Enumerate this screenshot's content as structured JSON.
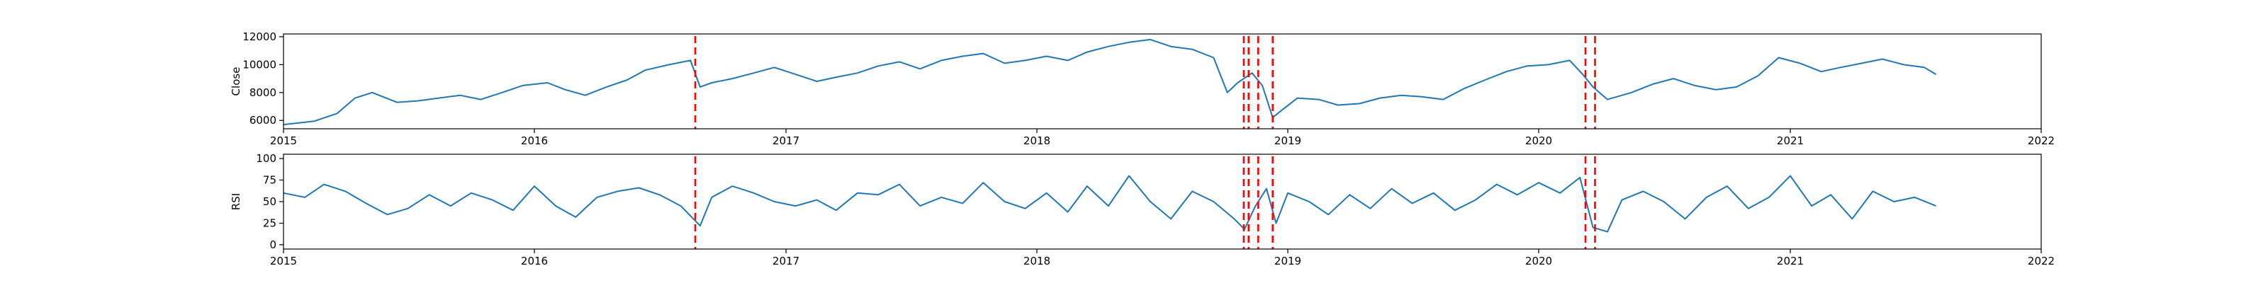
{
  "chart_data": [
    {
      "type": "line",
      "title": "",
      "xlabel": "",
      "ylabel": "Close",
      "xlim": [
        "2015-01-01",
        "2022-01-01"
      ],
      "ylim": [
        5400,
        12200
      ],
      "x_ticks": [
        "2015",
        "2016",
        "2017",
        "2018",
        "2019",
        "2020",
        "2021",
        "2022"
      ],
      "y_ticks": [
        "6000",
        "8000",
        "10000",
        "12000"
      ],
      "y_tick_values": [
        6000,
        8000,
        10000,
        12000
      ],
      "grid": false,
      "series": [
        {
          "color": "#1f77b4",
          "x": [
            "2015-01-01",
            "2015-02-15",
            "2015-03-20",
            "2015-04-15",
            "2015-05-10",
            "2015-06-15",
            "2015-07-15",
            "2015-08-15",
            "2015-09-15",
            "2015-10-15",
            "2015-11-15",
            "2015-12-15",
            "2016-01-20",
            "2016-02-15",
            "2016-03-15",
            "2016-04-15",
            "2016-05-15",
            "2016-06-10",
            "2016-07-15",
            "2016-08-15",
            "2016-08-29",
            "2016-09-15",
            "2016-10-15",
            "2016-11-15",
            "2016-12-15",
            "2017-01-15",
            "2017-02-15",
            "2017-03-15",
            "2017-04-15",
            "2017-05-15",
            "2017-06-15",
            "2017-07-15",
            "2017-08-15",
            "2017-09-15",
            "2017-10-15",
            "2017-11-15",
            "2017-12-15",
            "2018-01-15",
            "2018-02-15",
            "2018-03-15",
            "2018-04-15",
            "2018-05-15",
            "2018-06-15",
            "2018-07-15",
            "2018-08-15",
            "2018-09-15",
            "2018-10-05",
            "2018-10-20",
            "2018-11-10",
            "2018-11-25",
            "2018-12-10",
            "2018-12-25",
            "2019-01-15",
            "2019-02-15",
            "2019-03-15",
            "2019-04-15",
            "2019-05-15",
            "2019-06-15",
            "2019-07-15",
            "2019-08-15",
            "2019-09-15",
            "2019-10-15",
            "2019-11-15",
            "2019-12-15",
            "2020-01-15",
            "2020-02-15",
            "2020-03-05",
            "2020-03-20",
            "2020-04-10",
            "2020-05-15",
            "2020-06-15",
            "2020-07-15",
            "2020-08-15",
            "2020-09-15",
            "2020-10-15",
            "2020-11-15",
            "2020-12-15",
            "2021-01-15",
            "2021-02-15",
            "2021-03-15",
            "2021-04-15",
            "2021-05-15",
            "2021-06-15",
            "2021-07-15",
            "2021-08-01"
          ],
          "values": [
            5700,
            5950,
            6500,
            7600,
            8000,
            7300,
            7400,
            7600,
            7800,
            7500,
            8000,
            8500,
            8700,
            8200,
            7800,
            8400,
            8900,
            9600,
            10000,
            10300,
            8400,
            8700,
            9000,
            9400,
            9800,
            9300,
            8800,
            9100,
            9400,
            9900,
            10200,
            9700,
            10300,
            10600,
            10800,
            10100,
            10300,
            10600,
            10300,
            10900,
            11300,
            11600,
            11800,
            11300,
            11100,
            10500,
            8000,
            8700,
            9400,
            8500,
            6200,
            6800,
            7600,
            7500,
            7100,
            7200,
            7600,
            7800,
            7700,
            7500,
            8300,
            8900,
            9500,
            9900,
            10000,
            10300,
            9300,
            8400,
            7500,
            8000,
            8600,
            9000,
            8500,
            8200,
            8400,
            9200,
            10500,
            10100,
            9500,
            9800,
            10100,
            10400,
            10000,
            9800,
            9300
          ]
        }
      ],
      "event_lines": [
        "2016-08-22",
        "2018-10-29",
        "2018-11-05",
        "2018-11-19",
        "2018-12-10",
        "2020-03-09",
        "2020-03-23"
      ],
      "event_line_color": "#ff0000"
    },
    {
      "type": "line",
      "title": "",
      "xlabel": "",
      "ylabel": "RSI",
      "xlim": [
        "2015-01-01",
        "2022-01-01"
      ],
      "ylim": [
        -5,
        105
      ],
      "x_ticks": [
        "2015",
        "2016",
        "2017",
        "2018",
        "2019",
        "2020",
        "2021",
        "2022"
      ],
      "y_ticks": [
        "0",
        "25",
        "50",
        "75",
        "100"
      ],
      "y_tick_values": [
        0,
        25,
        50,
        75,
        100
      ],
      "grid": false,
      "series": [
        {
          "color": "#1f77b4",
          "x": [
            "2015-01-01",
            "2015-02-01",
            "2015-03-01",
            "2015-04-01",
            "2015-05-01",
            "2015-06-01",
            "2015-07-01",
            "2015-08-01",
            "2015-09-01",
            "2015-10-01",
            "2015-11-01",
            "2015-12-01",
            "2016-01-01",
            "2016-02-01",
            "2016-03-01",
            "2016-04-01",
            "2016-05-01",
            "2016-06-01",
            "2016-07-01",
            "2016-08-01",
            "2016-08-29",
            "2016-09-15",
            "2016-10-15",
            "2016-11-15",
            "2016-12-15",
            "2017-01-15",
            "2017-02-15",
            "2017-03-15",
            "2017-04-15",
            "2017-05-15",
            "2017-06-15",
            "2017-07-15",
            "2017-08-15",
            "2017-09-15",
            "2017-10-15",
            "2017-11-15",
            "2017-12-15",
            "2018-01-15",
            "2018-02-15",
            "2018-03-15",
            "2018-04-15",
            "2018-05-15",
            "2018-06-15",
            "2018-07-15",
            "2018-08-15",
            "2018-09-15",
            "2018-10-15",
            "2018-10-30",
            "2018-11-15",
            "2018-12-01",
            "2018-12-15",
            "2019-01-01",
            "2019-02-01",
            "2019-03-01",
            "2019-04-01",
            "2019-05-01",
            "2019-06-01",
            "2019-07-01",
            "2019-08-01",
            "2019-09-01",
            "2019-10-01",
            "2019-11-01",
            "2019-12-01",
            "2020-01-01",
            "2020-02-01",
            "2020-03-01",
            "2020-03-20",
            "2020-04-10",
            "2020-05-01",
            "2020-06-01",
            "2020-07-01",
            "2020-08-01",
            "2020-09-01",
            "2020-10-01",
            "2020-11-01",
            "2020-12-01",
            "2021-01-01",
            "2021-02-01",
            "2021-03-01",
            "2021-04-01",
            "2021-05-01",
            "2021-06-01",
            "2021-07-01",
            "2021-08-01"
          ],
          "values": [
            60,
            55,
            70,
            62,
            48,
            35,
            42,
            58,
            45,
            60,
            52,
            40,
            68,
            45,
            32,
            55,
            62,
            66,
            58,
            45,
            22,
            55,
            68,
            60,
            50,
            45,
            52,
            40,
            60,
            58,
            70,
            45,
            55,
            48,
            72,
            50,
            42,
            60,
            38,
            68,
            45,
            80,
            50,
            30,
            62,
            50,
            30,
            18,
            45,
            65,
            25,
            60,
            50,
            35,
            58,
            42,
            65,
            48,
            60,
            40,
            52,
            70,
            58,
            72,
            60,
            78,
            20,
            15,
            52,
            62,
            50,
            30,
            55,
            68,
            42,
            55,
            80,
            45,
            58,
            30,
            62,
            50,
            55,
            45
          ]
        }
      ],
      "event_lines": [
        "2016-08-22",
        "2018-10-29",
        "2018-11-05",
        "2018-11-19",
        "2018-12-10",
        "2020-03-09",
        "2020-03-23"
      ],
      "event_line_color": "#ff0000"
    }
  ]
}
